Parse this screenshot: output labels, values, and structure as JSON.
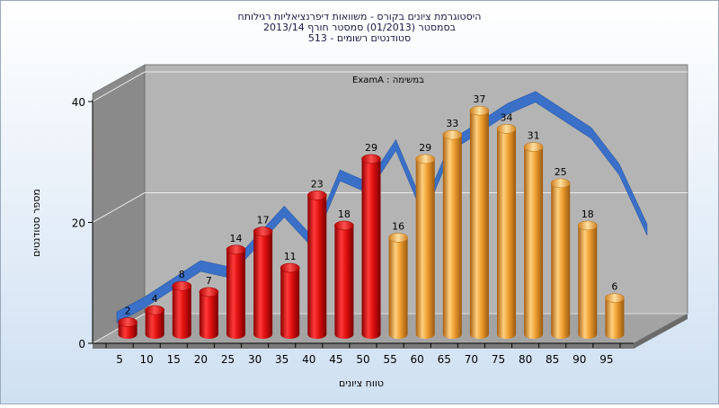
{
  "header": {
    "title_lines": [
      "היסטוגרמת ציונים בקורס - משוואות דיפרנציאליות רגילותח",
      "בסמסטר  (01/2013)  סמסטר חורף  2013/14",
      "513 - סטודנטים רשומים"
    ]
  },
  "chart_data": {
    "type": "bar",
    "title": "היסטוגרמת ציונים בקורס - משוואות דיפרנציאליות רגילותח",
    "subtitle": "בסמסטר  (01/2013)  סמסטר חורף  2013/14 / 513 - סטודנטים רשומים",
    "annotation": "ExamA : במשימה",
    "xlabel": "טווח ציונים",
    "ylabel": "מספר סטודנטים",
    "ylim": [
      0,
      40
    ],
    "yticks": [
      "0",
      "20",
      "40"
    ],
    "categories": [
      "5",
      "10",
      "15",
      "20",
      "25",
      "30",
      "35",
      "40",
      "45",
      "50",
      "55",
      "60",
      "65",
      "70",
      "75",
      "80",
      "85",
      "90",
      "95"
    ],
    "values": [
      2,
      4,
      8,
      7,
      14,
      17,
      11,
      23,
      18,
      29,
      16,
      29,
      33,
      37,
      34,
      31,
      25,
      18,
      6
    ],
    "bar_groups": [
      {
        "from_index": 0,
        "to_index": 9,
        "color": "#e01010"
      },
      {
        "from_index": 10,
        "to_index": 18,
        "color": "#f0a030"
      }
    ],
    "trend_line": {
      "color": "#3a70c8",
      "values": [
        2.5,
        5,
        8,
        11,
        10,
        15,
        20,
        15,
        26,
        24,
        31,
        20,
        31,
        34,
        37,
        39,
        36,
        33,
        27,
        17
      ]
    },
    "grid": true,
    "style": "3d",
    "colors": {
      "plot_back": "#b4b4b4",
      "side_wall": "#8a8a8a",
      "floor": "#a0a0a0",
      "gridline": "#ffffff",
      "frame_background_top": "#ffffff",
      "frame_background_bottom": "#cfe0f2"
    }
  }
}
